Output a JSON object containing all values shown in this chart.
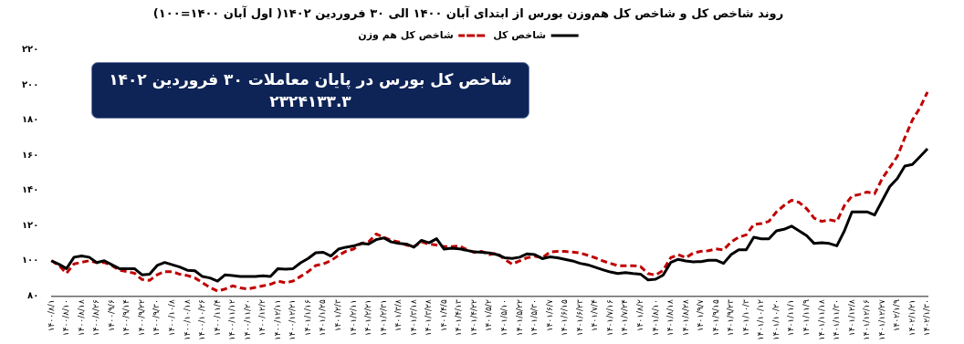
{
  "chart_data": {
    "type": "line",
    "title": "روند شاخص کل و شاخص کل هم‌وزن بورس از ابتدای آبان ۱۴۰۰ الی ۳۰ فروردین ۱۴۰۲( اول آبان ۱۴۰۰=۱۰۰)",
    "annotations": [
      "شاخص کل بورس در پایان معاملات ۳۰ فروردین ۱۴۰۲",
      "۲۳۲۴۱۳۳.۳"
    ],
    "categories": [
      "۱۴۰۰/۸/۱",
      null,
      "۱۴۰۰/۸/۱۰",
      null,
      "۱۴۰۰/۸/۱۸",
      null,
      "۱۴۰۰/۸/۲۶",
      null,
      "۱۴۰۰/۹/۶",
      null,
      "۱۴۰۰/۹/۱۴",
      null,
      "۱۴۰۰/۹/۲۲",
      null,
      "۱۴۰۰/۹/۳۰",
      null,
      "۱۴۰۰/۱۰/۸",
      null,
      "۱۴۰۰/۱۰/۱۸",
      null,
      "۱۴۰۰/۱۰/۲۶",
      null,
      "۱۴۰۰/۱۱/۴",
      null,
      "۱۴۰۰/۱۱/۱۲",
      null,
      "۱۴۰۰/۱۱/۲۰",
      null,
      "۱۴۰۰/۱۲/۲",
      null,
      "۱۴۰۰/۱۲/۱۱",
      null,
      "۱۴۰۰/۱۲/۲۱",
      null,
      "۱۴۰۱/۱/۱۶",
      null,
      "۱۴۰۱/۱/۲۵",
      null,
      "۱۴۰۱/۲/۳",
      null,
      "۱۴۰۱/۲/۱۱",
      null,
      "۱۴۰۱/۲/۲۱",
      null,
      "۱۴۰۱/۲/۳۱",
      null,
      "۱۴۰۱/۳/۸",
      null,
      "۱۴۰۱/۳/۱۸",
      null,
      "۱۴۰۱/۳/۲۸",
      null,
      "۱۴۰۱/۴/۵",
      null,
      "۱۴۰۱/۴/۱۳",
      null,
      "۱۴۰۱/۴/۲۲",
      null,
      "۱۴۰۱/۵/۲",
      null,
      "۱۴۰۱/۵/۱۰",
      null,
      "۱۴۰۱/۵/۲۲",
      null,
      "۱۴۰۱/۵/۳۰",
      null,
      "۱۴۰۱/۶/۷",
      null,
      "۱۴۰۱/۶/۱۵",
      null,
      "۱۴۰۱/۶/۲۳",
      null,
      "۱۴۰۱/۷/۴",
      null,
      "۱۴۰۱/۷/۱۶",
      null,
      "۱۴۰۱/۷/۲۴",
      null,
      "۱۴۰۱/۸/۲",
      null,
      "۱۴۰۱/۸/۱۰",
      null,
      "۱۴۰۱/۸/۱۸",
      null,
      "۱۴۰۱/۸/۲۸",
      null,
      "۱۴۰۱/۹/۷",
      null,
      "۱۴۰۱/۹/۱۵",
      null,
      "۱۴۰۱/۹/۲۳",
      null,
      "۱۴۰۱/۱۰/۳",
      null,
      "۱۴۰۱/۱۰/۱۲",
      null,
      "۱۴۰۱/۱۰/۲۰",
      null,
      "۱۴۰۱/۱۱/۱",
      null,
      "۱۴۰۱/۱۱/۹",
      null,
      "۱۴۰۱/۱۱/۱۸",
      null,
      "۱۴۰۱/۱۱/۳۰",
      null,
      "۱۴۰۱/۱۲/۸",
      null,
      "۱۴۰۱/۱۲/۱۶",
      null,
      "۱۴۰۱/۱۲/۲۷",
      null,
      "۱۴۰۲/۱/۹",
      null,
      "۱۴۰۲/۱/۲۱",
      null,
      "۱۴۰۲/۱/۳۰"
    ],
    "series": [
      {
        "name": "شاخص کل",
        "color": "#000000",
        "line_style": "solid",
        "values": [
          100,
          98,
          95.5,
          102,
          102.7,
          102,
          99,
          100,
          97.7,
          95.5,
          95.5,
          95.5,
          92,
          92.3,
          97.3,
          99,
          97.7,
          96.4,
          94.6,
          94.3,
          91,
          90.2,
          88.4,
          92,
          91.6,
          91,
          91,
          91,
          91.4,
          91,
          95.5,
          95.2,
          95.5,
          98.8,
          101.3,
          104.5,
          104.8,
          102.7,
          106.6,
          107.7,
          108.4,
          109.8,
          109.5,
          112,
          113,
          110.7,
          109.8,
          109.5,
          107.7,
          111.6,
          110.2,
          112.5,
          106.6,
          107.1,
          106.8,
          105.9,
          105,
          104.8,
          104.4,
          103.5,
          101.7,
          101.3,
          102,
          103.9,
          103.5,
          101.2,
          102.2,
          101.7,
          100.8,
          99.9,
          98.5,
          97.7,
          96.3,
          94.9,
          93.6,
          92.7,
          93.3,
          92.7,
          92.4,
          89.1,
          89.5,
          91.8,
          99,
          100.8,
          99.9,
          99.4,
          99.5,
          100.3,
          100.3,
          98.5,
          103.5,
          106.2,
          106.2,
          113.4,
          112.5,
          112.5,
          117,
          117.9,
          119.7,
          117,
          114.3,
          109.8,
          110.3,
          109.8,
          108.5,
          117,
          127.8,
          127.8,
          127.8,
          126,
          134.1,
          142.2,
          146.7,
          153.9,
          154.8,
          159.2,
          163.7
        ]
      },
      {
        "name": "شاخص کل هم وزن",
        "color": "#c00000",
        "line_style": "dashed",
        "values": [
          100,
          97.3,
          92.9,
          98.2,
          99.1,
          100,
          99,
          99,
          97.3,
          94.6,
          93.8,
          92.9,
          89.3,
          88.8,
          92,
          93.8,
          93.8,
          92.3,
          91.6,
          90.2,
          87.5,
          84.8,
          82.7,
          83.9,
          85.7,
          84.5,
          83.9,
          84.8,
          85.7,
          86.6,
          88.4,
          87.5,
          88.4,
          91.1,
          93.8,
          97.3,
          98.2,
          100,
          103,
          105.4,
          106.6,
          109.8,
          110.7,
          115.2,
          113.4,
          111.6,
          110.7,
          108.9,
          108,
          110.7,
          109.5,
          108.9,
          108,
          108,
          108.4,
          106.3,
          104.8,
          105.3,
          103.5,
          104.4,
          100.8,
          98.1,
          99.9,
          101.7,
          102.6,
          101.7,
          104.9,
          105.3,
          105.3,
          104.9,
          104.4,
          103.1,
          101.7,
          99.9,
          98.5,
          97.2,
          97.2,
          97.2,
          96.7,
          92.7,
          91.8,
          94.5,
          101.7,
          103.5,
          101.7,
          104.4,
          105.3,
          105.7,
          106.7,
          106.2,
          110.7,
          113.4,
          114.7,
          120.6,
          121.1,
          122.4,
          127.8,
          131.4,
          134.4,
          133.2,
          129.6,
          124.2,
          122.4,
          123.3,
          122.4,
          131.4,
          136.8,
          137.7,
          139.1,
          138.1,
          146.7,
          153,
          159.3,
          170,
          180,
          187,
          196
        ]
      }
    ],
    "ylim": [
      80,
      220
    ],
    "yticks": [
      {
        "value": 80,
        "label": "۸۰"
      },
      {
        "value": 100,
        "label": "۱۰۰"
      },
      {
        "value": 120,
        "label": "۱۲۰"
      },
      {
        "value": 140,
        "label": "۱۴۰"
      },
      {
        "value": 160,
        "label": "۱۶۰"
      },
      {
        "value": 180,
        "label": "۱۸۰"
      },
      {
        "value": 200,
        "label": "۲۰۰"
      },
      {
        "value": 220,
        "label": "۲۲۰"
      }
    ],
    "grid": false,
    "legend": "top",
    "marker": "none"
  }
}
